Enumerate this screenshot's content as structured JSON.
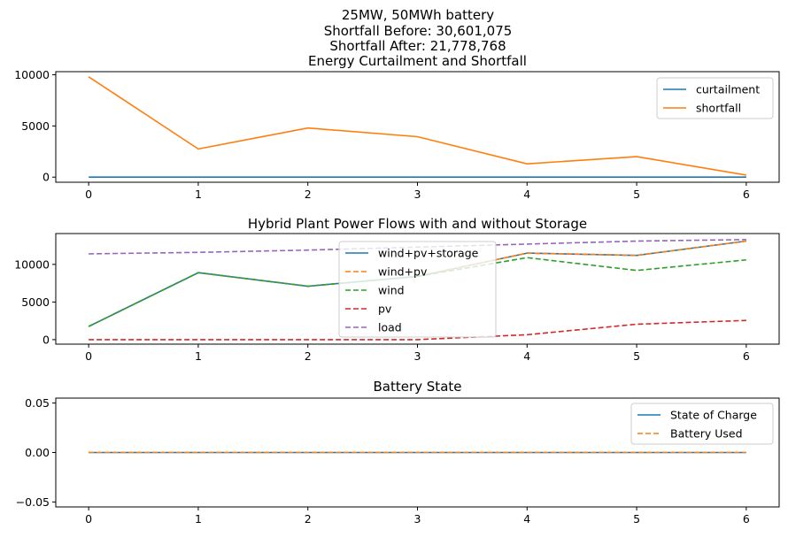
{
  "figure": {
    "title_lines": [
      "25MW, 50MWh battery",
      "Shortfall Before: 30,601,075",
      "Shortfall After: 21,778,768"
    ]
  },
  "chart_data": [
    {
      "type": "line",
      "title": "Energy Curtailment and Shortfall",
      "xlabel": "",
      "ylabel": "",
      "x": [
        0,
        1,
        2,
        3,
        4,
        5,
        6
      ],
      "xticks": [
        0,
        1,
        2,
        3,
        4,
        5,
        6
      ],
      "yticks": [
        0,
        5000,
        10000
      ],
      "xlim": [
        -0.3,
        6.3
      ],
      "ylim": [
        -500,
        10300
      ],
      "legend": "upper right",
      "grid": false,
      "series": [
        {
          "name": "curtailment",
          "color": "#1f77b4",
          "dash": "solid",
          "values": [
            0,
            0,
            0,
            0,
            0,
            0,
            0
          ]
        },
        {
          "name": "shortfall",
          "color": "#ff7f0e",
          "dash": "solid",
          "values": [
            9800,
            2750,
            4800,
            3950,
            1300,
            2000,
            200
          ]
        }
      ]
    },
    {
      "type": "line",
      "title": "Hybrid Plant Power Flows with and without Storage",
      "xlabel": "",
      "ylabel": "",
      "x": [
        0,
        1,
        2,
        3,
        4,
        5,
        6
      ],
      "xticks": [
        0,
        1,
        2,
        3,
        4,
        5,
        6
      ],
      "yticks": [
        0,
        5000,
        10000
      ],
      "xlim": [
        -0.3,
        6.3
      ],
      "ylim": [
        -600,
        14100
      ],
      "legend": "center",
      "grid": false,
      "series": [
        {
          "name": "wind+pv+storage",
          "color": "#1f77b4",
          "dash": "solid",
          "values": [
            1750,
            8900,
            7100,
            8400,
            11500,
            11200,
            13100
          ]
        },
        {
          "name": "wind+pv",
          "color": "#ff7f0e",
          "dash": "dashed",
          "values": [
            1750,
            8900,
            7100,
            8400,
            11500,
            11200,
            13100
          ]
        },
        {
          "name": "wind",
          "color": "#2ca02c",
          "dash": "dashed",
          "values": [
            1750,
            8900,
            7100,
            8400,
            10900,
            9200,
            10600
          ]
        },
        {
          "name": "pv",
          "color": "#d62728",
          "dash": "dashed",
          "values": [
            0,
            0,
            0,
            0,
            650,
            2050,
            2550
          ]
        },
        {
          "name": "load",
          "color": "#9467bd",
          "dash": "dashed",
          "values": [
            11400,
            11600,
            11900,
            12300,
            12700,
            13100,
            13300
          ]
        }
      ]
    },
    {
      "type": "line",
      "title": "Battery State",
      "xlabel": "",
      "ylabel": "",
      "x": [
        0,
        1,
        2,
        3,
        4,
        5,
        6
      ],
      "xticks": [
        0,
        1,
        2,
        3,
        4,
        5,
        6
      ],
      "yticks": [
        -0.05,
        0.0,
        0.05
      ],
      "ytick_labels": [
        "−0.05",
        "0.00",
        "0.05"
      ],
      "xlim": [
        -0.3,
        6.3
      ],
      "ylim": [
        -0.055,
        0.055
      ],
      "legend": "upper right",
      "grid": false,
      "series": [
        {
          "name": "State of Charge",
          "color": "#1f77b4",
          "dash": "solid",
          "values": [
            0,
            0,
            0,
            0,
            0,
            0,
            0
          ]
        },
        {
          "name": "Battery Used",
          "color": "#ff7f0e",
          "dash": "dashed",
          "values": [
            0,
            0,
            0,
            0,
            0,
            0,
            0
          ]
        }
      ]
    }
  ]
}
